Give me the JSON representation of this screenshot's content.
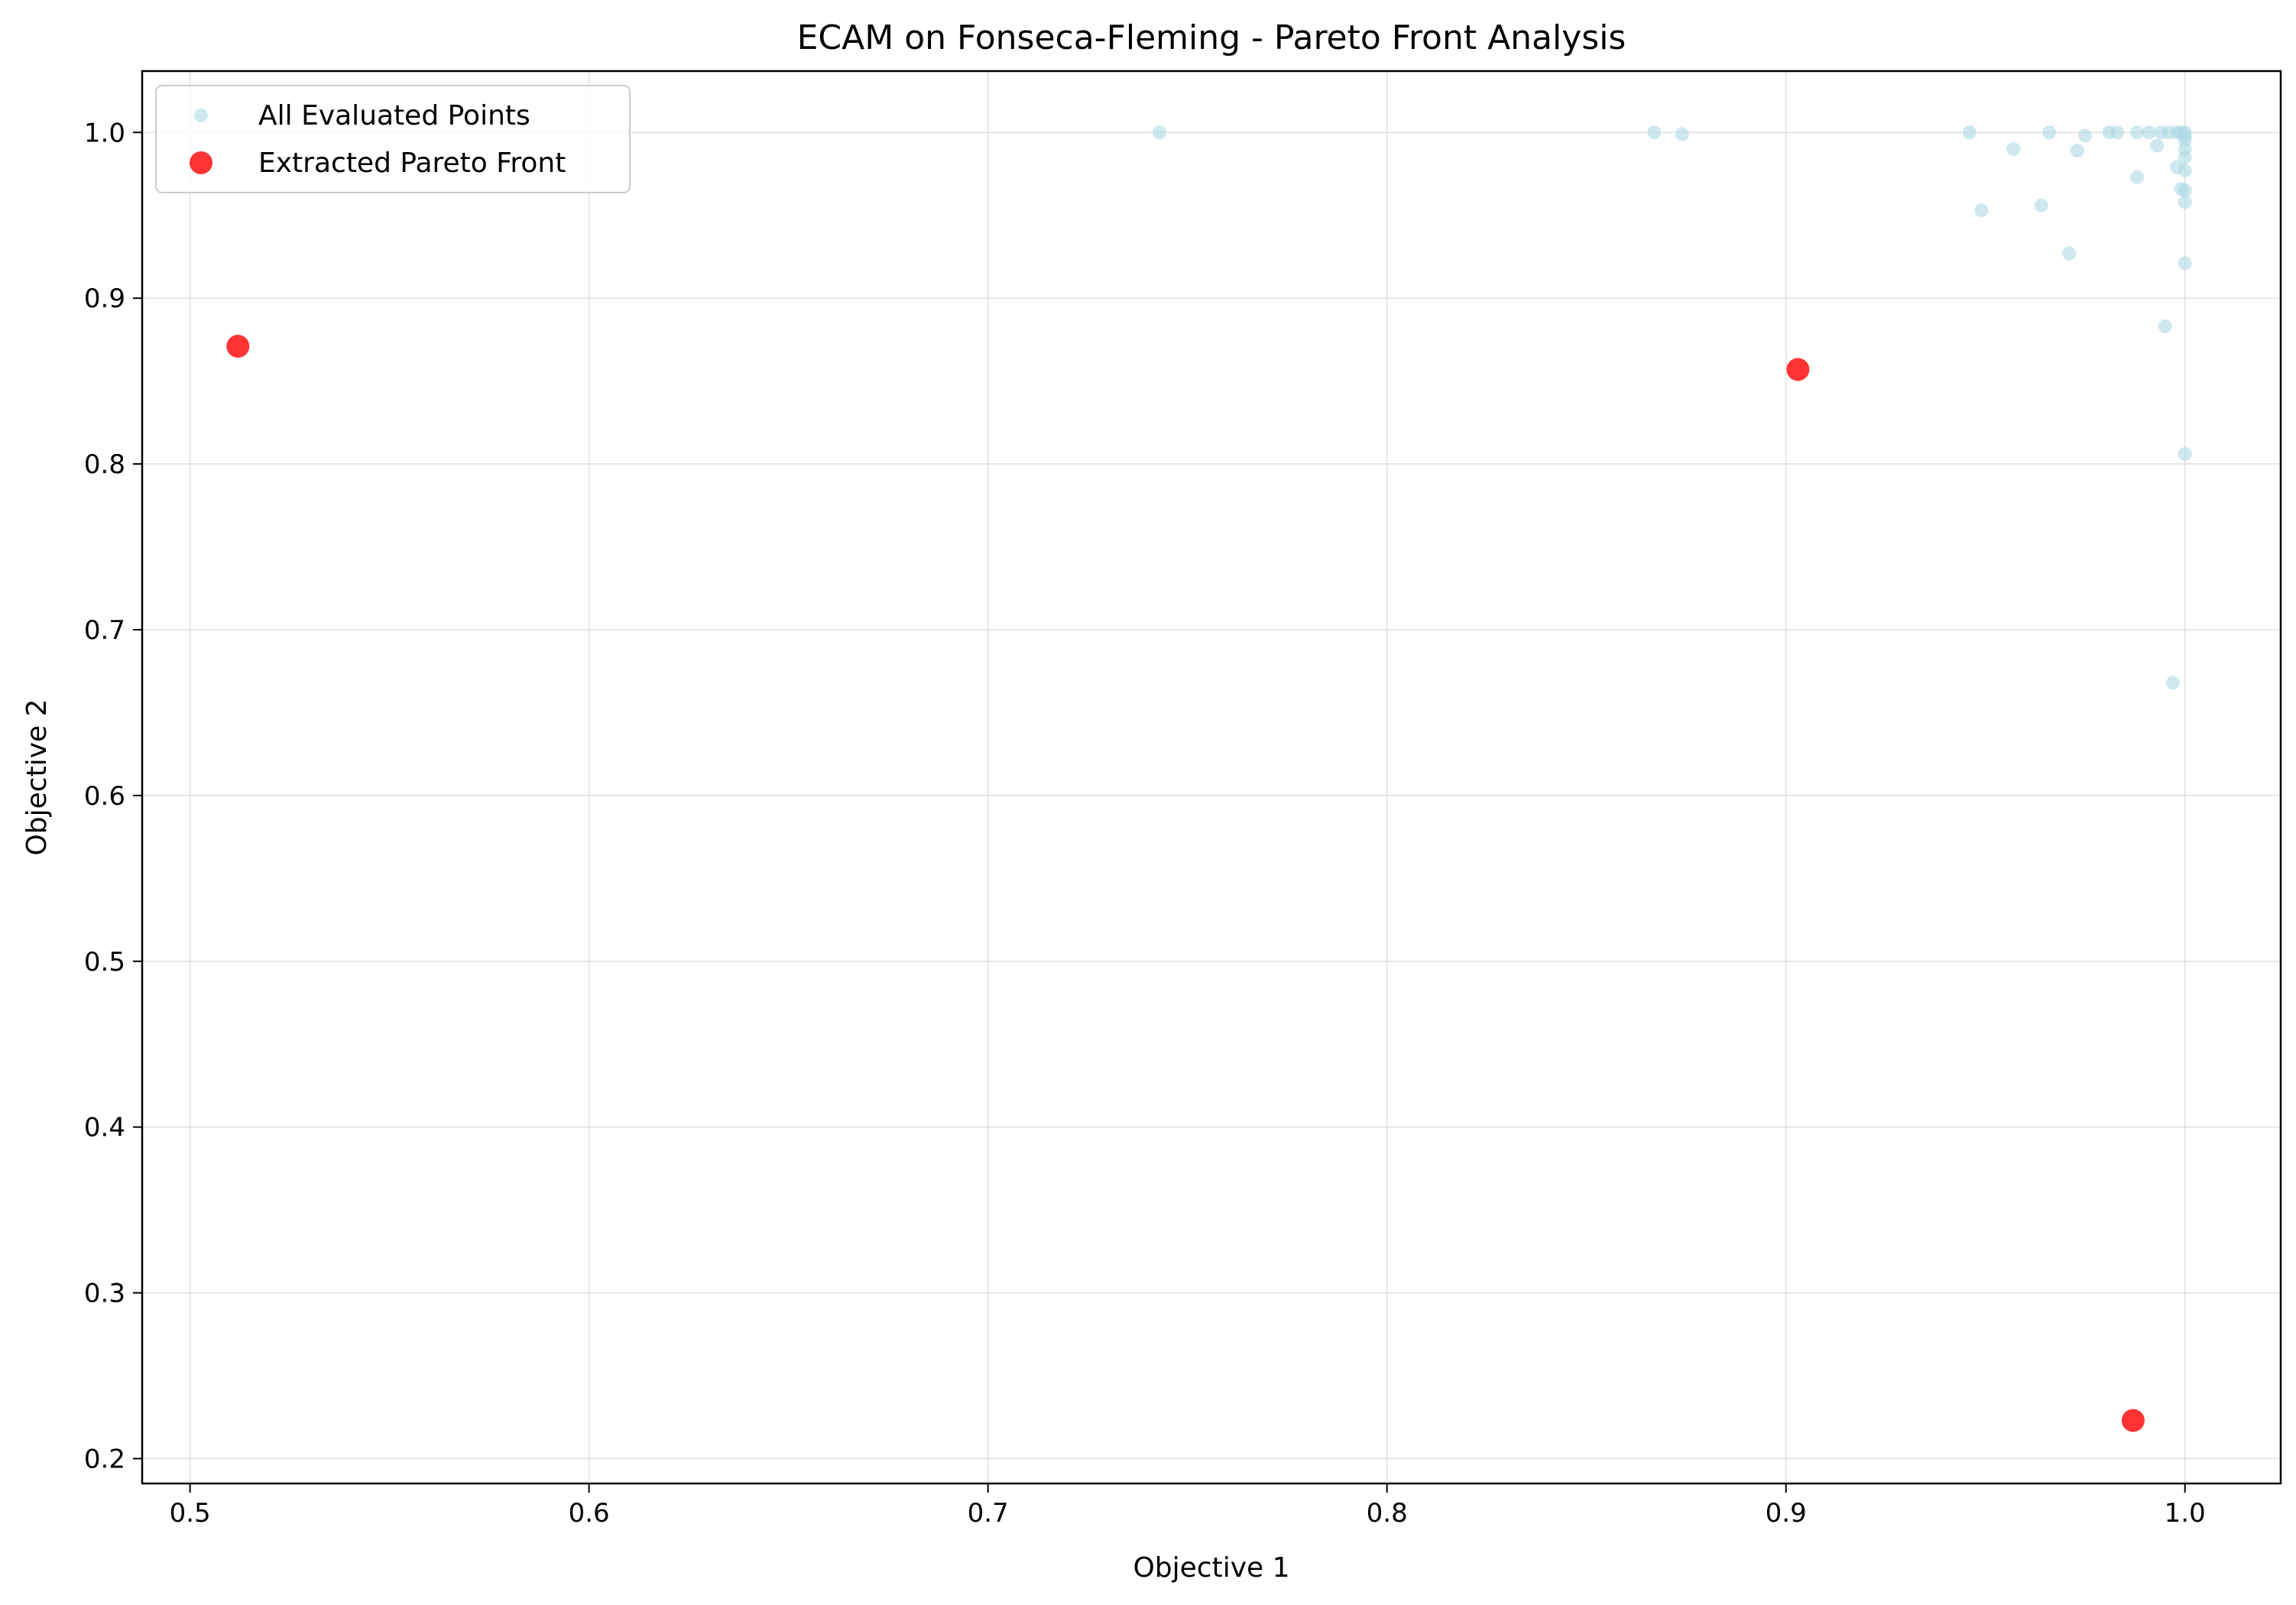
{
  "chart_data": {
    "type": "scatter",
    "title": "ECAM on Fonseca-Fleming - Pareto Front Analysis",
    "xlabel": "Objective 1",
    "ylabel": "Objective 2",
    "xlim": [
      0.488,
      1.024
    ],
    "ylim": [
      0.185,
      1.037
    ],
    "xticks": [
      0.5,
      0.6,
      0.7,
      0.8,
      0.9,
      1.0
    ],
    "xtick_labels": [
      "0.5",
      "0.6",
      "0.7",
      "0.8",
      "0.9",
      "1.0"
    ],
    "yticks": [
      0.2,
      0.3,
      0.4,
      0.5,
      0.6,
      0.7,
      0.8,
      0.9,
      1.0
    ],
    "ytick_labels": [
      "0.2",
      "0.3",
      "0.4",
      "0.5",
      "0.6",
      "0.7",
      "0.8",
      "0.9",
      "1.0"
    ],
    "grid": true,
    "legend_position": "top-left",
    "series": [
      {
        "name": "All Evaluated Points",
        "color": "#add8e6",
        "marker": "small-circle",
        "points": [
          [
            0.743,
            1.0
          ],
          [
            0.867,
            1.0
          ],
          [
            0.874,
            0.999
          ],
          [
            0.946,
            1.0
          ],
          [
            0.957,
            0.99
          ],
          [
            0.949,
            0.953
          ],
          [
            0.964,
            0.956
          ],
          [
            0.966,
            1.0
          ],
          [
            0.971,
            0.927
          ],
          [
            0.973,
            0.989
          ],
          [
            0.975,
            0.998
          ],
          [
            0.981,
            1.0
          ],
          [
            0.983,
            1.0
          ],
          [
            0.988,
            1.0
          ],
          [
            0.988,
            0.973
          ],
          [
            0.991,
            1.0
          ],
          [
            0.993,
            0.992
          ],
          [
            0.994,
            1.0
          ],
          [
            0.995,
            0.883
          ],
          [
            0.996,
            1.0
          ],
          [
            0.997,
            0.668
          ],
          [
            0.998,
            0.979
          ],
          [
            0.998,
            1.0
          ],
          [
            0.999,
            0.966
          ],
          [
            0.999,
            1.0
          ],
          [
            1.0,
            1.0
          ],
          [
            1.0,
            0.998
          ],
          [
            1.0,
            0.995
          ],
          [
            1.0,
            0.99
          ],
          [
            1.0,
            0.985
          ],
          [
            1.0,
            0.977
          ],
          [
            1.0,
            0.965
          ],
          [
            1.0,
            0.958
          ],
          [
            1.0,
            0.921
          ],
          [
            1.0,
            0.806
          ]
        ]
      },
      {
        "name": "Extracted Pareto Front",
        "color": "#ff0000",
        "marker": "large-circle",
        "points": [
          [
            0.512,
            0.871
          ],
          [
            0.903,
            0.857
          ],
          [
            0.987,
            0.223
          ]
        ]
      }
    ]
  }
}
